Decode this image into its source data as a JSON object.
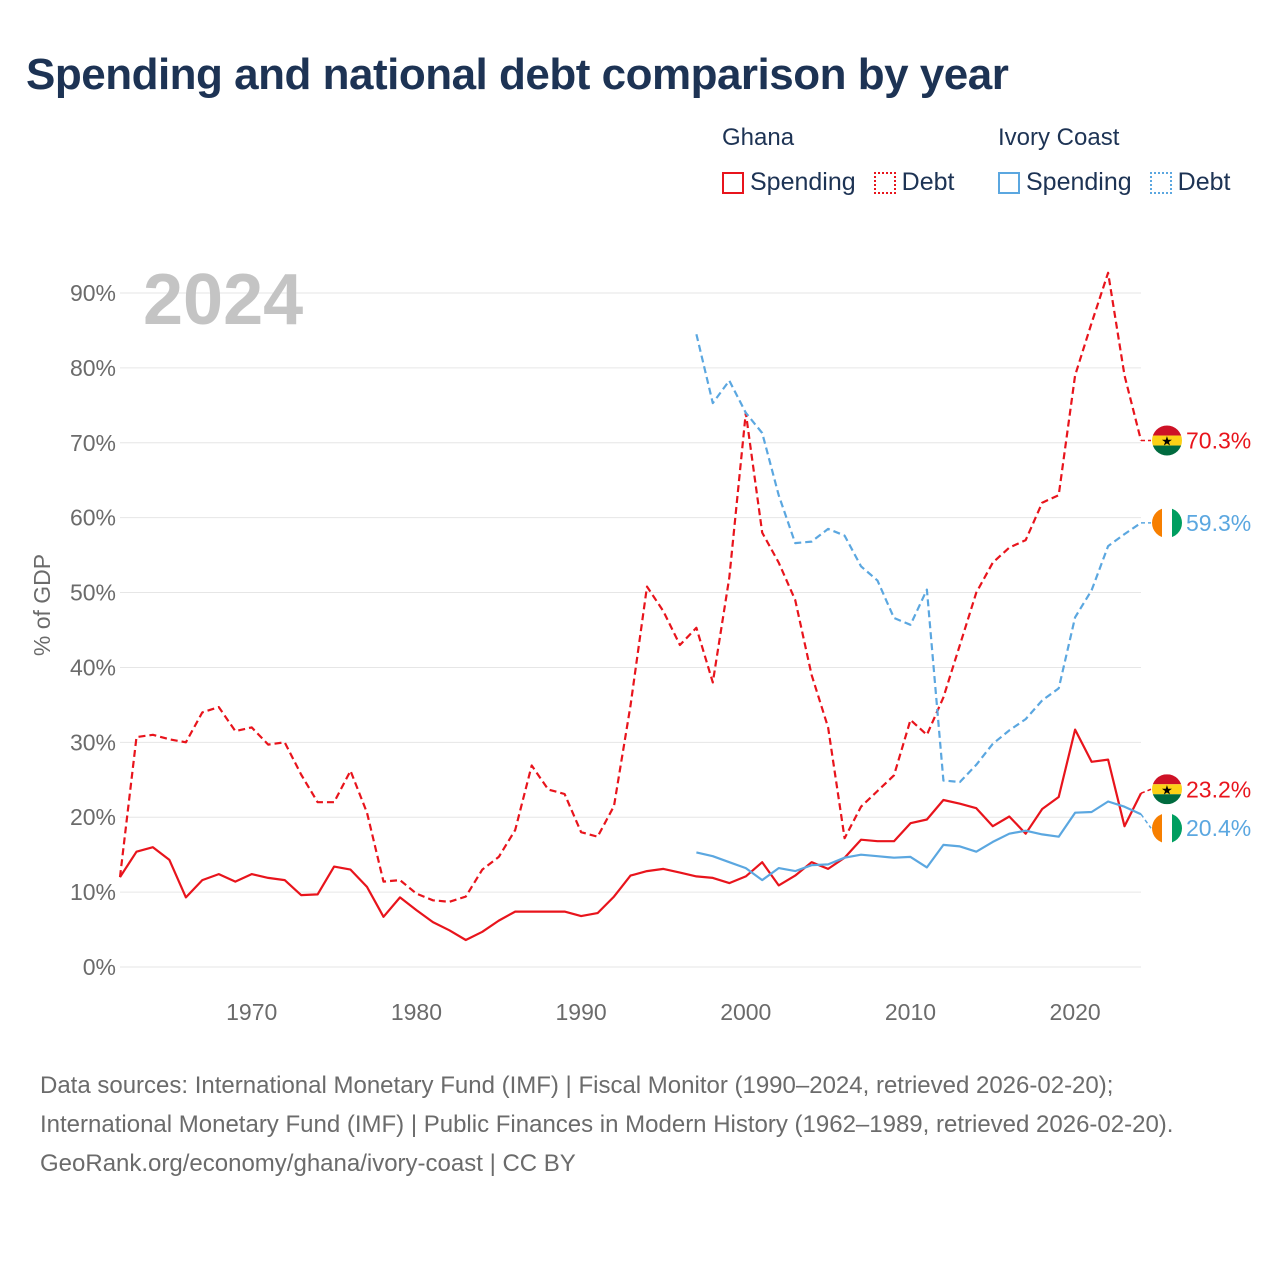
{
  "title": "Spending and national debt comparison by year",
  "legend": {
    "groups": [
      {
        "country": "Ghana",
        "items": [
          {
            "label": "Spending",
            "style": "solid",
            "color": "#e8141c"
          },
          {
            "label": "Debt",
            "style": "dotted",
            "color": "#e8141c"
          }
        ]
      },
      {
        "country": "Ivory Coast",
        "items": [
          {
            "label": "Spending",
            "style": "solid",
            "color": "#5ba7e0"
          },
          {
            "label": "Debt",
            "style": "dotted",
            "color": "#5ba7e0"
          }
        ]
      }
    ]
  },
  "chart_data": {
    "type": "line",
    "year_label": "2024",
    "ylabel": "% of GDP",
    "xlim": [
      1962,
      2024
    ],
    "ylim": [
      0,
      90
    ],
    "xticks": [
      1970,
      1980,
      1990,
      2000,
      2010,
      2020
    ],
    "yticks": [
      0,
      10,
      20,
      30,
      40,
      50,
      60,
      70,
      80,
      90
    ],
    "ytick_labels": [
      "0%",
      "10%",
      "20%",
      "30%",
      "40%",
      "50%",
      "60%",
      "70%",
      "80%",
      "90%"
    ],
    "grid": true,
    "series": [
      {
        "name": "Ghana Spending",
        "color": "#e8141c",
        "dash": "solid",
        "start_year": 1962,
        "values": [
          12.0,
          15.4,
          16.0,
          14.3,
          9.3,
          11.6,
          12.4,
          11.4,
          12.4,
          11.9,
          11.6,
          9.6,
          9.7,
          13.4,
          13.0,
          10.7,
          6.7,
          9.3,
          7.6,
          6.0,
          4.9,
          3.6,
          4.7,
          6.2,
          7.4,
          7.4,
          7.4,
          7.4,
          6.8,
          7.2,
          9.4,
          12.2,
          12.8,
          13.1,
          12.6,
          12.1,
          11.9,
          11.2,
          12.1,
          14.0,
          10.9,
          12.2,
          14.0,
          13.1,
          14.6,
          17.0,
          16.8,
          16.8,
          19.2,
          19.7,
          22.3,
          21.8,
          21.2,
          18.8,
          20.1,
          17.8,
          21.1,
          22.7,
          31.7,
          27.4,
          27.7,
          18.8,
          23.2
        ]
      },
      {
        "name": "Ghana Debt",
        "color": "#e8141c",
        "dash": "dashed",
        "start_year": 1962,
        "values": [
          12.0,
          30.7,
          31.0,
          30.4,
          30.0,
          34.0,
          34.7,
          31.5,
          32.0,
          29.7,
          30.0,
          25.7,
          22.0,
          22.0,
          26.2,
          20.6,
          11.4,
          11.6,
          9.8,
          8.9,
          8.7,
          9.4,
          13.0,
          14.7,
          18.3,
          26.9,
          23.7,
          23.1,
          18.0,
          17.4,
          21.5,
          34.9,
          50.8,
          47.5,
          43.0,
          45.3,
          38.0,
          52.0,
          74.0,
          58.0,
          54.0,
          49.0,
          39.0,
          32.0,
          17.2,
          21.4,
          23.5,
          25.6,
          33.0,
          31.0,
          36.0,
          43.0,
          50.0,
          54.0,
          56.0,
          57.0,
          62.0,
          63.0,
          79.0,
          86.0,
          92.7,
          79.0,
          70.3
        ]
      },
      {
        "name": "Ivory Coast Spending",
        "color": "#5ba7e0",
        "dash": "solid",
        "start_year": 1997,
        "values": [
          15.3,
          14.8,
          14.0,
          13.2,
          11.6,
          13.2,
          12.8,
          13.6,
          13.7,
          14.6,
          15.0,
          14.8,
          14.6,
          14.7,
          13.3,
          16.3,
          16.1,
          15.4,
          16.7,
          17.8,
          18.2,
          17.7,
          17.4,
          20.6,
          20.7,
          22.1,
          21.4,
          20.4
        ]
      },
      {
        "name": "Ivory Coast Debt",
        "color": "#5ba7e0",
        "dash": "dashed",
        "start_year": 1997,
        "values": [
          84.5,
          75.3,
          78.3,
          74.0,
          71.3,
          63.0,
          56.6,
          56.8,
          58.5,
          57.6,
          53.5,
          51.6,
          46.6,
          45.7,
          50.4,
          24.9,
          24.7,
          27.0,
          29.8,
          31.6,
          33.1,
          35.6,
          37.2,
          46.7,
          50.3,
          56.2,
          57.8,
          59.3
        ]
      }
    ],
    "end_labels": [
      {
        "series": "Ghana Debt",
        "text": "70.3%",
        "value": 70.3,
        "flag": "ghana",
        "color": "#e8141c"
      },
      {
        "series": "Ivory Coast Debt",
        "text": "59.3%",
        "value": 59.3,
        "flag": "ivory-coast",
        "color": "#5ba7e0"
      },
      {
        "series": "Ghana Spending",
        "text": "23.2%",
        "value": 23.2,
        "flag": "ghana",
        "color": "#e8141c"
      },
      {
        "series": "Ivory Coast Spending",
        "text": "20.4%",
        "value": 20.4,
        "flag": "ivory-coast",
        "color": "#5ba7e0"
      }
    ]
  },
  "footer": {
    "sources": "Data sources: International Monetary Fund (IMF) | Fiscal Monitor (1990–2024, retrieved 2026-02-20); International Monetary Fund (IMF) | Public Finances in Modern History (1962–1989, retrieved 2026-02-20).",
    "credit": "GeoRank.org/economy/ghana/ivory-coast | CC BY"
  }
}
